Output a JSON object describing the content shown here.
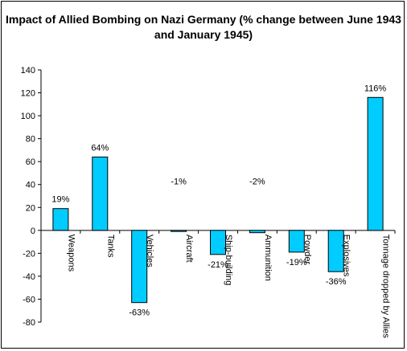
{
  "chart_data": {
    "type": "bar",
    "title": "Impact of Allied Bombing on Nazi Germany (% change between June 1943 and January 1945)",
    "categories": [
      "Weapons",
      "Tanks",
      "Vehicles",
      "Aircraft",
      "Ship-building",
      "Ammunition",
      "Powder",
      "Explosives",
      "Tonnage dropped by Allies"
    ],
    "values": [
      19,
      64,
      -63,
      -1,
      -21,
      -2,
      -19,
      -36,
      116
    ],
    "data_labels": [
      "19%",
      "64%",
      "-63%",
      "-1%",
      "-21%",
      "-2%",
      "-19%",
      "-36%",
      "116%"
    ],
    "ylim": [
      -80,
      140
    ],
    "yticks": [
      -80,
      -60,
      -40,
      -20,
      0,
      20,
      40,
      60,
      80,
      100,
      120,
      140
    ],
    "grid": false,
    "legend": "none",
    "bar_color": "#00ccff",
    "bar_edge_color": "#000000"
  }
}
